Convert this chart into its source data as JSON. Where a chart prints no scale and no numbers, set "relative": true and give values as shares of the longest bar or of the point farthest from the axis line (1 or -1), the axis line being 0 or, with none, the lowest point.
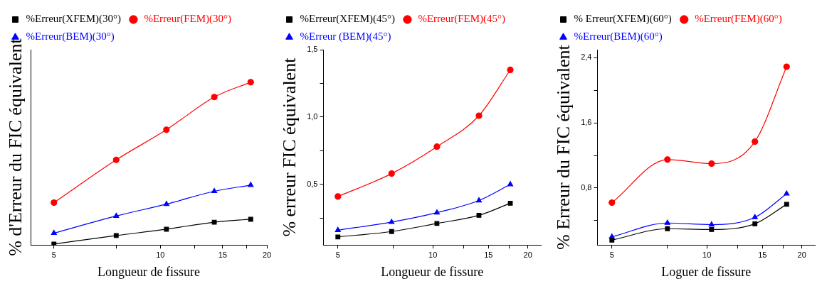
{
  "chart_data": [
    {
      "type": "line",
      "relative": true,
      "xlabel": "Longueur de fissure",
      "ylabel": "% d'Erreur du FIC équivalent",
      "log": "x",
      "xlim": [
        4.3,
        20
      ],
      "xticks": [
        5,
        {
          "value": 7.5,
          "label": null
        },
        10,
        {
          "value": 12.5,
          "label": null
        },
        15,
        {
          "value": 17.5,
          "label": null
        },
        20
      ],
      "legend": "top left",
      "grid": false,
      "x": [
        5,
        7.5,
        10.4,
        14.2,
        18
      ],
      "series": [
        {
          "name": "%Erreur(XFEM)(30°)",
          "color": "#000000",
          "marker": "square",
          "values": [
            0.006,
            0.058,
            0.097,
            0.14,
            0.158
          ]
        },
        {
          "name": "%Erreur(FEM)(30°)",
          "color": "#ff0000",
          "marker": "circle",
          "values": [
            0.26,
            0.523,
            0.708,
            0.909,
            1
          ]
        },
        {
          "name": "%Erreur(BEM)(30°)",
          "color": "#0000ff",
          "marker": "triangle",
          "values": [
            0.073,
            0.178,
            0.251,
            0.33,
            0.368
          ]
        }
      ]
    },
    {
      "type": "line",
      "xlabel": "Longueur de fissure",
      "ylabel": "% erreur FIC équivalent",
      "log": "x",
      "xlim": [
        4.5,
        22
      ],
      "xticks": [
        5,
        {
          "value": 7.5,
          "label": null
        },
        10,
        {
          "value": 12.5,
          "label": null
        },
        15,
        {
          "value": 17.5,
          "label": null
        },
        20
      ],
      "ylim": [
        0.05,
        1.5
      ],
      "yticks": [
        {
          "value": 0.25,
          "label": null
        },
        {
          "value": 0.5,
          "label": "0,5"
        },
        {
          "value": 0.75,
          "label": null
        },
        {
          "value": 1,
          "label": "1,0"
        },
        {
          "value": 1.25,
          "label": null
        },
        {
          "value": 1.5,
          "label": "1,5"
        }
      ],
      "legend": "top left",
      "grid": false,
      "x": [
        5,
        7.4,
        10.3,
        14,
        17.6
      ],
      "series": [
        {
          "name": "%Erreur(XFEM)(45°)",
          "color": "#000000",
          "marker": "square",
          "values": [
            0.11,
            0.15,
            0.21,
            0.27,
            0.36
          ]
        },
        {
          "name": "%Erreur(FEM)(45°)",
          "color": "#ff0000",
          "marker": "circle",
          "values": [
            0.41,
            0.58,
            0.78,
            1.01,
            1.35
          ]
        },
        {
          "name": "%Erreur (BEM)(45°)",
          "color": "#0000ff",
          "marker": "triangle",
          "values": [
            0.16,
            0.22,
            0.29,
            0.38,
            0.5
          ]
        }
      ]
    },
    {
      "type": "line",
      "xlabel": "Loguer de fissure",
      "ylabel": "% Erreur du FIC équivalent",
      "log": "x",
      "xlim": [
        4.5,
        22
      ],
      "xticks": [
        5,
        {
          "value": 7.5,
          "label": null
        },
        10,
        {
          "value": 12.5,
          "label": null
        },
        15,
        {
          "value": 17.5,
          "label": null
        },
        20
      ],
      "ylim": [
        0.1,
        2.5
      ],
      "yticks": [
        {
          "value": 0.4,
          "label": null
        },
        {
          "value": 0.8,
          "label": "0,8"
        },
        {
          "value": 1.2,
          "label": null
        },
        {
          "value": 1.6,
          "label": "1,6"
        },
        {
          "value": 2.0,
          "label": null
        },
        {
          "value": 2.4,
          "label": "2,4"
        }
      ],
      "legend": "top left",
      "grid": false,
      "x": [
        5,
        7.5,
        10.35,
        14.2,
        17.9
      ],
      "series": [
        {
          "name": "% Erreur(XFEM)(60°)",
          "color": "#000000",
          "marker": "square",
          "values": [
            0.16,
            0.3,
            0.29,
            0.36,
            0.6
          ]
        },
        {
          "name": "%Erreur(FEM)(60°)",
          "color": "#ff0000",
          "marker": "circle",
          "values": [
            0.62,
            1.15,
            1.1,
            1.37,
            2.29
          ]
        },
        {
          "name": "%Erreur(BEM)(60°)",
          "color": "#0000ff",
          "marker": "triangle",
          "values": [
            0.2,
            0.37,
            0.35,
            0.44,
            0.73
          ]
        }
      ]
    }
  ]
}
